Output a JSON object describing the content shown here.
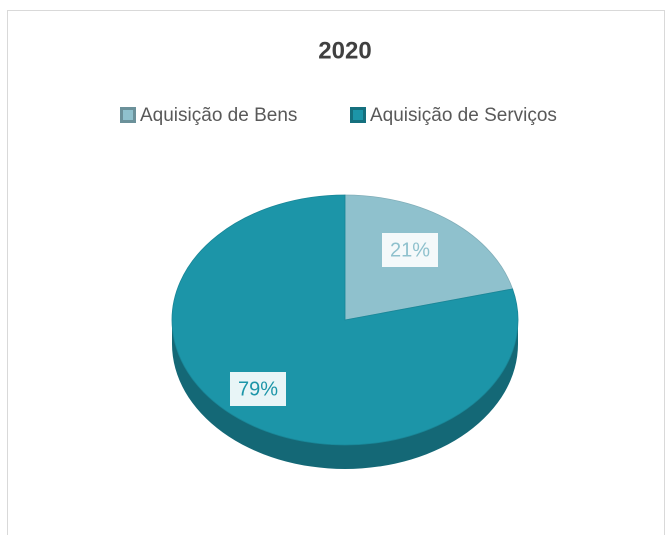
{
  "chart_data": {
    "type": "pie",
    "title": "2020",
    "categories": [
      "Aquisição de Bens",
      "Aquisição de Serviços"
    ],
    "values": [
      21,
      79
    ],
    "value_labels": [
      "21%",
      "79%"
    ],
    "colors": [
      "#8fc1cd",
      "#1c95a8"
    ],
    "legend": "top"
  }
}
